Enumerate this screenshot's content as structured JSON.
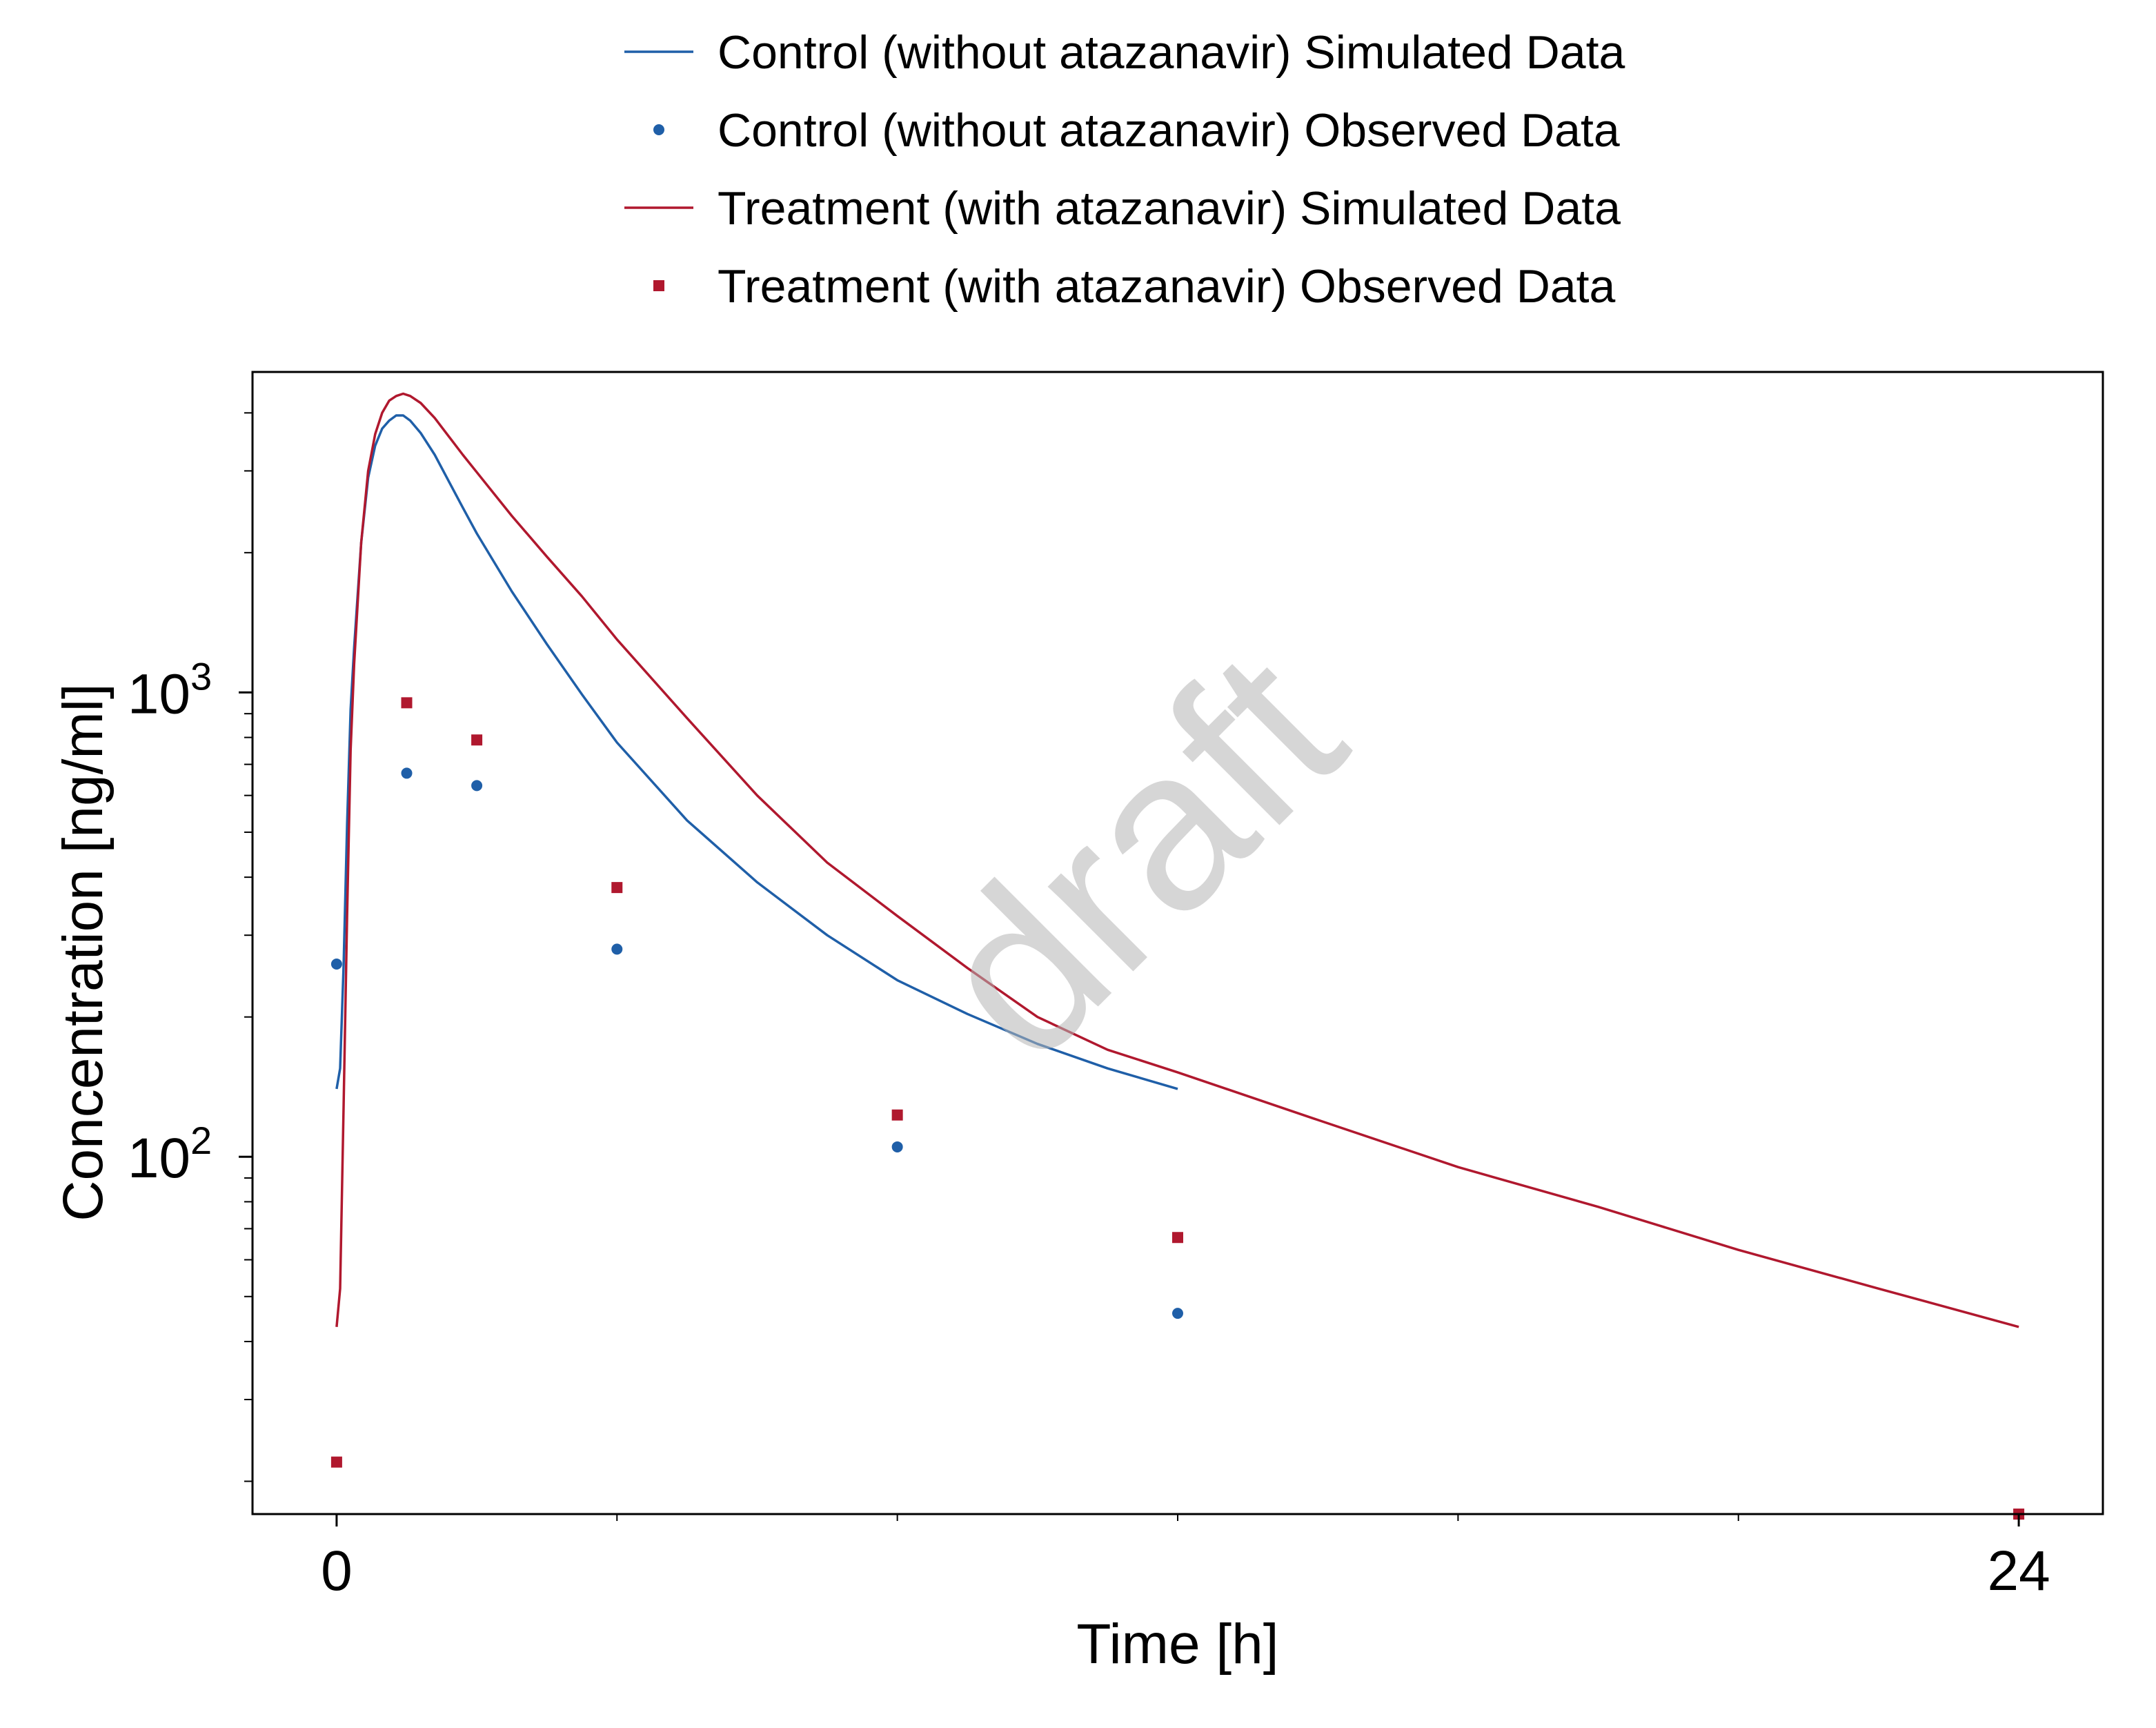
{
  "chart_data": {
    "type": "line",
    "title": "",
    "xlabel": "Time [h]",
    "ylabel": "Concentration [ng/ml]",
    "xlim": [
      -1.2,
      25.2
    ],
    "ylim": [
      17,
      4900
    ],
    "yscale": "log",
    "x_ticks": [
      {
        "value": 0,
        "label": "0"
      },
      {
        "value": 24,
        "label": "24"
      }
    ],
    "x_minor_ticks": [
      4,
      8,
      12,
      16,
      20
    ],
    "y_ticks": [
      {
        "value": 100,
        "base": "10",
        "exp": "2"
      },
      {
        "value": 1000,
        "base": "10",
        "exp": "3"
      }
    ],
    "y_minor_ticks": [
      20,
      30,
      40,
      50,
      60,
      70,
      80,
      90,
      200,
      300,
      400,
      500,
      600,
      700,
      800,
      900,
      2000,
      3000,
      4000
    ],
    "watermark": "draft",
    "legend_position": "top-center",
    "series": [
      {
        "name": "Control (without atazanavir) Simulated Data",
        "kind": "line",
        "color": "#1f5fa8",
        "x": [
          0,
          0.05,
          0.1,
          0.15,
          0.2,
          0.25,
          0.35,
          0.45,
          0.55,
          0.65,
          0.75,
          0.85,
          0.95,
          1.05,
          1.2,
          1.4,
          1.6,
          1.8,
          2,
          2.5,
          3,
          3.5,
          4,
          5,
          6,
          7,
          8,
          9,
          10,
          11,
          12
        ],
        "y": [
          140,
          155,
          260,
          520,
          920,
          1250,
          2100,
          2900,
          3400,
          3700,
          3850,
          3950,
          3950,
          3850,
          3620,
          3250,
          2850,
          2500,
          2200,
          1650,
          1270,
          990,
          780,
          530,
          390,
          300,
          240,
          203,
          175,
          155,
          140
        ]
      },
      {
        "name": "Control (without atazanavir) Observed Data",
        "kind": "points",
        "marker": "circle",
        "color": "#1f5fa8",
        "x": [
          0,
          1,
          2,
          4,
          8,
          12
        ],
        "y": [
          260,
          670,
          630,
          280,
          105,
          46
        ]
      },
      {
        "name": "Treatment (with atazanavir) Simulated Data",
        "kind": "line",
        "color": "#b0182e",
        "x": [
          0,
          0.05,
          0.1,
          0.15,
          0.2,
          0.25,
          0.35,
          0.45,
          0.55,
          0.65,
          0.75,
          0.85,
          0.95,
          1.05,
          1.2,
          1.4,
          1.6,
          1.8,
          2,
          2.5,
          3,
          3.5,
          4,
          5,
          6,
          7,
          8,
          9,
          10,
          11,
          12,
          14,
          16,
          18,
          20,
          22,
          24
        ],
        "y": [
          43,
          52,
          130,
          330,
          750,
          1150,
          2100,
          3000,
          3600,
          4000,
          4250,
          4350,
          4400,
          4350,
          4200,
          3900,
          3560,
          3250,
          2980,
          2400,
          1960,
          1610,
          1300,
          880,
          600,
          430,
          330,
          255,
          200,
          170,
          152,
          120,
          95,
          78,
          63,
          52,
          43
        ]
      },
      {
        "name": "Treatment (with atazanavir) Observed Data",
        "kind": "points",
        "marker": "square",
        "color": "#b0182e",
        "x": [
          0,
          1,
          2,
          4,
          8,
          12,
          24
        ],
        "y": [
          22,
          950,
          790,
          380,
          123,
          67,
          17
        ]
      }
    ]
  }
}
